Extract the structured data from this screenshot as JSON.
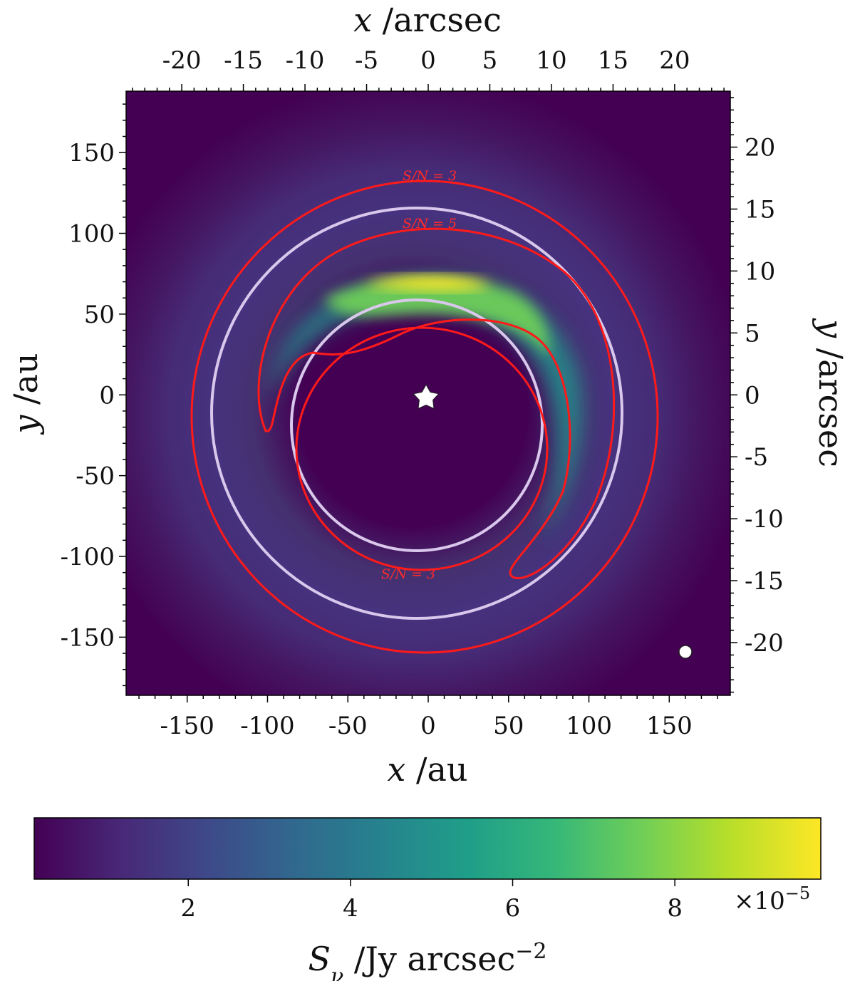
{
  "chart_data": {
    "type": "heatmap",
    "xlabel_bottom": "x /au",
    "xlabel_top": "x /arcsec",
    "ylabel_left": "y /au",
    "ylabel_right": "y /arcsec",
    "xlim_au": [
      -188,
      188
    ],
    "ylim_au": [
      -186,
      188
    ],
    "xticks_bottom": [
      "-150",
      "-100",
      "-50",
      "0",
      "50",
      "100",
      "150"
    ],
    "yticks_left": [
      "150",
      "100",
      "50",
      "0",
      "-50",
      "-100",
      "-150"
    ],
    "xticks_top": [
      "-20",
      "-15",
      "-10",
      "-5",
      "0",
      "5",
      "10",
      "15",
      "20"
    ],
    "yticks_right": [
      "20",
      "15",
      "10",
      "5",
      "0",
      "-5",
      "-10",
      "-15",
      "-20"
    ],
    "arcsec_per_au": 0.1304,
    "colorbar": {
      "label": "S_ν /Jy arcsec^-2",
      "label_main": "S",
      "label_sub": "ν",
      "label_units": " /Jy arcsec",
      "label_exp": "−2",
      "ticks": [
        "2",
        "4",
        "6",
        "8"
      ],
      "tick_values": [
        2,
        4,
        6,
        8
      ],
      "range": [
        0.1,
        9.8
      ],
      "scale_text": "×10",
      "scale_exp": "−5",
      "colormap": "viridis"
    },
    "contours": [
      {
        "label": "S/N = 3"
      },
      {
        "label": "S/N = 5"
      },
      {
        "label": "S/N = 3"
      }
    ],
    "ring_colors": {
      "sn_contour": "#ff1a1a",
      "model_ring": "#d9c7ec"
    },
    "markers": [
      "star-icon",
      "beam-icon"
    ]
  }
}
